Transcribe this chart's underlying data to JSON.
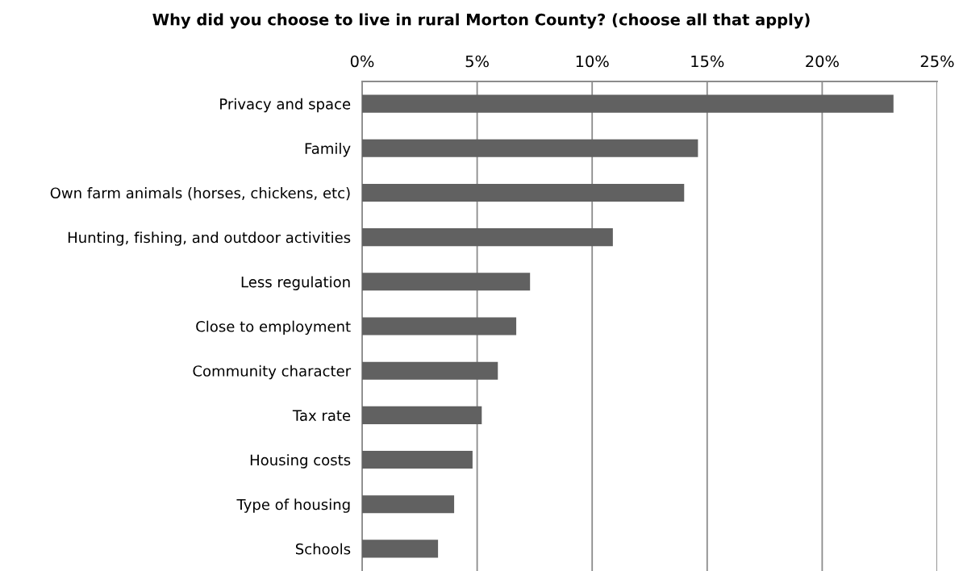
{
  "chart_data": {
    "type": "bar",
    "orientation": "horizontal",
    "title": "Why did you choose to live in rural Morton County? (choose all that apply)",
    "categories": [
      "Privacy and space",
      "Family",
      "Own farm animals (horses, chickens, etc)",
      "Hunting, fishing, and outdoor activities",
      "Less regulation",
      "Close to employment",
      "Community character",
      "Tax rate",
      "Housing costs",
      "Type of housing",
      "Schools"
    ],
    "values": [
      23.1,
      14.6,
      14.0,
      10.9,
      7.3,
      6.7,
      5.9,
      5.2,
      4.8,
      4.0,
      3.3
    ],
    "color": "#616161",
    "xlim": [
      0,
      25
    ],
    "xticks": [
      {
        "value": 0,
        "label": "0%"
      },
      {
        "value": 5,
        "label": "5%"
      },
      {
        "value": 10,
        "label": "10%"
      },
      {
        "value": 15,
        "label": "15%"
      },
      {
        "value": 20,
        "label": "20%"
      },
      {
        "value": 25,
        "label": "25%"
      }
    ],
    "grid": "x"
  }
}
